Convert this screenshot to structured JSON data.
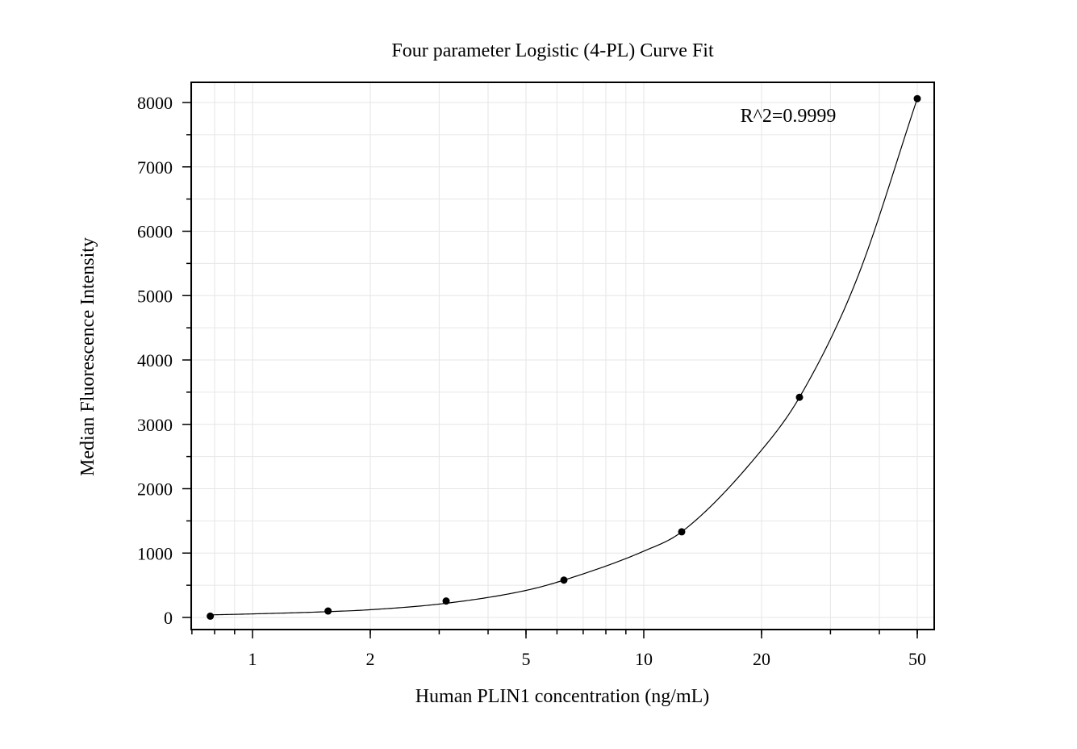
{
  "chart_data": {
    "type": "scatter",
    "title": "Four parameter Logistic (4-PL) Curve Fit",
    "xlabel": "Human PLIN1 concentration (ng/mL)",
    "ylabel": "Median Fluorescence Intensity",
    "x_scale": "log",
    "xlim": [
      0.7,
      53
    ],
    "ylim": [
      -200,
      8300
    ],
    "x_ticks": [
      1,
      2,
      5,
      10,
      20,
      50
    ],
    "x_tick_labels": [
      "1",
      "2",
      "5",
      "10",
      "20",
      "50"
    ],
    "y_ticks": [
      0,
      1000,
      2000,
      3000,
      4000,
      5000,
      6000,
      7000,
      8000
    ],
    "y_tick_labels": [
      "0",
      "1000",
      "2000",
      "3000",
      "4000",
      "5000",
      "6000",
      "7000",
      "8000"
    ],
    "grid": true,
    "annotation": "R^2=0.9999",
    "series": [
      {
        "type": "scatter",
        "x": [
          0.78,
          1.56,
          3.125,
          6.25,
          12.5,
          25,
          50
        ],
        "y": [
          20,
          100,
          255,
          580,
          1330,
          3420,
          8060
        ]
      },
      {
        "type": "line",
        "x": [
          0.78,
          1.0,
          1.56,
          2.0,
          3.125,
          5.0,
          6.25,
          10.0,
          12.5,
          20.0,
          25.0,
          35.0,
          50.0
        ],
        "y": [
          40,
          55,
          90,
          120,
          220,
          420,
          580,
          1030,
          1330,
          2600,
          3420,
          5250,
          8060
        ]
      }
    ],
    "colors": {
      "points": "#000000",
      "curve": "#000000",
      "grid": "#e6e6e6",
      "frame": "#000000"
    }
  }
}
